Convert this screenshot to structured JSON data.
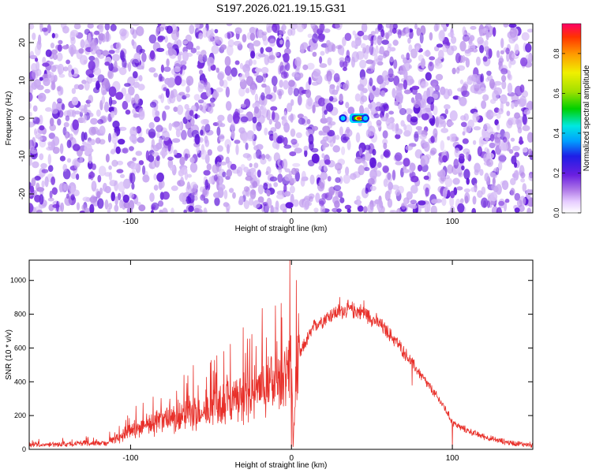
{
  "figure": {
    "title": "S197.2026.021.19.15.G31"
  },
  "colors": {
    "background": "#ffffff",
    "axis": "#000000",
    "snr_line": "#e8302a",
    "spectrogram_low": "#c9a9f2",
    "spectrogram_mid": "#7a32e0",
    "spectrogram_high": "#5a10d8"
  },
  "colorbar": {
    "label": "Normalized spectral amplitude",
    "ticks": [
      "0.0",
      "0.2",
      "0.4",
      "0.6",
      "0.8"
    ],
    "tick_values": [
      0.0,
      0.2,
      0.4,
      0.6,
      0.8
    ],
    "range": [
      0,
      0.95
    ],
    "colormap": [
      "#ffffff",
      "#e6ccff",
      "#b07ae8",
      "#6a1fe0",
      "#1e1ee6",
      "#00a0ff",
      "#00e8e0",
      "#00d000",
      "#a0e000",
      "#f0f000",
      "#ff9900",
      "#ff3300",
      "#ff0066"
    ]
  },
  "chart_data": [
    {
      "type": "heatmap",
      "title": "S197.2026.021.19.15.G31",
      "xlabel": "Height of straight line (km)",
      "ylabel": "Frequency (Hz)",
      "xlim": [
        -163,
        150
      ],
      "ylim": [
        -25,
        25
      ],
      "xticks": [
        -100,
        0,
        100
      ],
      "xtick_labels": [
        "-100",
        "0",
        "100"
      ],
      "yticks": [
        -20,
        -10,
        0,
        10,
        20
      ],
      "ytick_labels": [
        "-20",
        "-10",
        "0",
        "10",
        "20"
      ],
      "colorbar_label": "Normalized spectral amplitude",
      "value_range": [
        0,
        0.95
      ],
      "description_values": {
        "background_amplitude_range": [
          0.02,
          0.12
        ],
        "quiet_columns_km": [
          -90,
          38
        ],
        "hotspots": [
          {
            "x": 32,
            "y": 0,
            "value": 0.25
          },
          {
            "x": 42,
            "y": 0,
            "value": 0.95
          },
          {
            "x": 46,
            "y": 0,
            "value": 0.3
          }
        ]
      }
    },
    {
      "type": "line",
      "xlabel": "Height of straight line (km)",
      "ylabel": "SNR (10 * v/v)",
      "xlim": [
        -163,
        150
      ],
      "ylim": [
        0,
        1120
      ],
      "xticks": [
        -100,
        0,
        100
      ],
      "xtick_labels": [
        "-100",
        "0",
        "100"
      ],
      "yticks": [
        0,
        200,
        400,
        600,
        800,
        1000
      ],
      "ytick_labels": [
        "0",
        "200",
        "400",
        "600",
        "800",
        "1000"
      ],
      "grid": false,
      "series": [
        {
          "color": "#e8302a",
          "envelope": {
            "x": [
              -163,
              -140,
              -115,
              -105,
              -95,
              -88,
              -80,
              -70,
              -62,
              -55,
              -45,
              -35,
              -25,
              -18,
              -10,
              -5,
              -2,
              0,
              1,
              3,
              5,
              8,
              15,
              25,
              35,
              45,
              55,
              65,
              75,
              85,
              95,
              100,
              105,
              115,
              125,
              135,
              145,
              150
            ],
            "y": [
              25,
              30,
              40,
              80,
              120,
              150,
              170,
              190,
              220,
              210,
              260,
              290,
              330,
              380,
              420,
              450,
              480,
              500,
              20,
              420,
              550,
              620,
              740,
              800,
              830,
              810,
              740,
              640,
              510,
              380,
              250,
              160,
              130,
              90,
              60,
              40,
              30,
              25
            ]
          },
          "spikes": [
            {
              "x": -85,
              "y": 200
            },
            {
              "x": -65,
              "y": 390
            },
            {
              "x": -48,
              "y": 330
            },
            {
              "x": -40,
              "y": 440
            },
            {
              "x": -30,
              "y": 720
            },
            {
              "x": -22,
              "y": 610
            },
            {
              "x": -10,
              "y": 850
            },
            {
              "x": -6,
              "y": 780
            },
            {
              "x": -1,
              "y": 1120
            },
            {
              "x": 0,
              "y": 10
            },
            {
              "x": 3,
              "y": 1000
            },
            {
              "x": 30,
              "y": 900
            },
            {
              "x": 45,
              "y": 880
            },
            {
              "x": 75,
              "y": 380
            },
            {
              "x": 100,
              "y": 0
            }
          ]
        }
      ]
    }
  ]
}
